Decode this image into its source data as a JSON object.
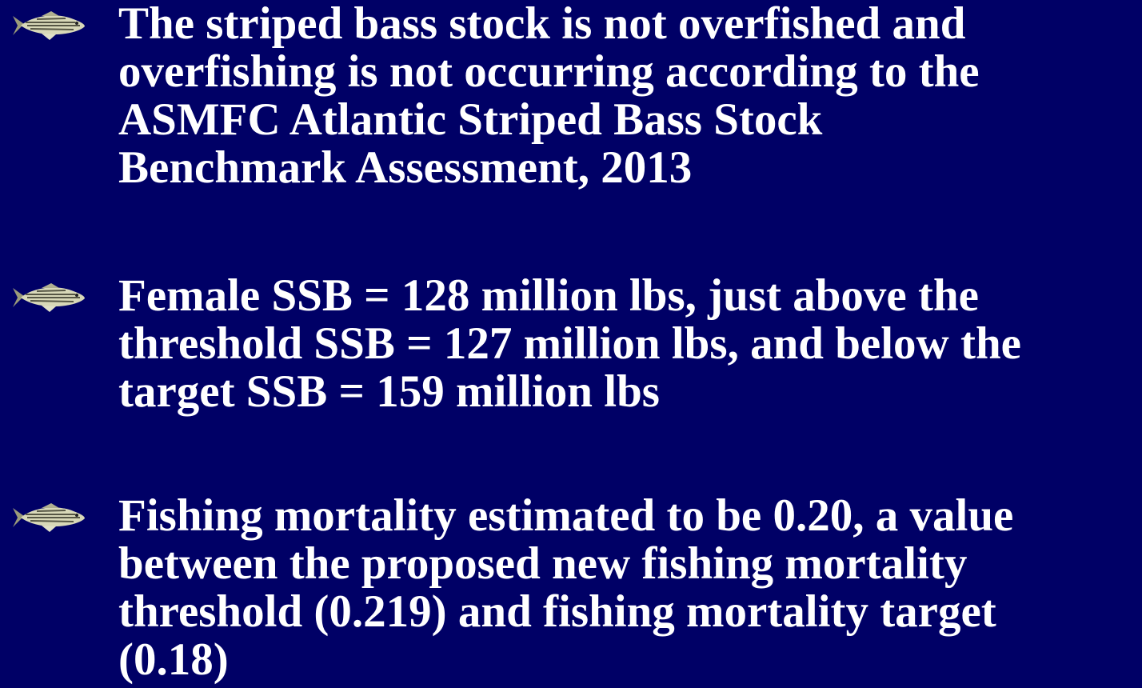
{
  "bullets": [
    [
      "The striped bass stock is not overfished and",
      "overfishing is not occurring according to the",
      "ASMFC Atlantic Striped Bass Stock",
      "Benchmark Assessment, 2013"
    ],
    [
      "Female SSB = 128 million lbs, just above the",
      "threshold SSB = 127 million lbs, and below the",
      "target SSB = 159 million lbs"
    ],
    [
      "Fishing mortality estimated to be 0.20, a value",
      "between the proposed new fishing mortality",
      "threshold (0.219) and fishing mortality target",
      "(0.18)"
    ]
  ]
}
